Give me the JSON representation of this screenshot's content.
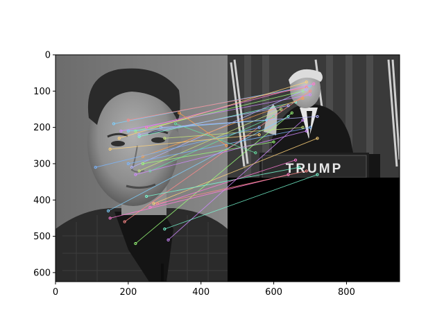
{
  "figure": {
    "podium_text": "TRUMP",
    "x_ticks": [
      "0",
      "200",
      "400",
      "600",
      "800"
    ],
    "y_ticks": [
      "0",
      "100",
      "200",
      "300",
      "400",
      "500",
      "600"
    ]
  },
  "axes": {
    "x_range": [
      0,
      946
    ],
    "y_range": [
      625,
      0
    ],
    "x_tick_values": [
      0,
      200,
      400,
      600,
      800
    ],
    "y_tick_values": [
      0,
      100,
      200,
      300,
      400,
      500,
      600
    ]
  },
  "left_image": {
    "description_colors": [
      "#7a7a7a",
      "#2a2a2a",
      "#1a1a1a"
    ]
  },
  "right_image": {
    "width_data": 473,
    "height_data": 338
  },
  "match_colors": [
    "#7fd1ff",
    "#ff8a8a",
    "#9cff7a",
    "#d08aff",
    "#ffd37a",
    "#7affd6",
    "#ff7ad6",
    "#b3b3ff",
    "#c8e67a",
    "#7ab6ff",
    "#ffa14d",
    "#66e0a3"
  ]
}
